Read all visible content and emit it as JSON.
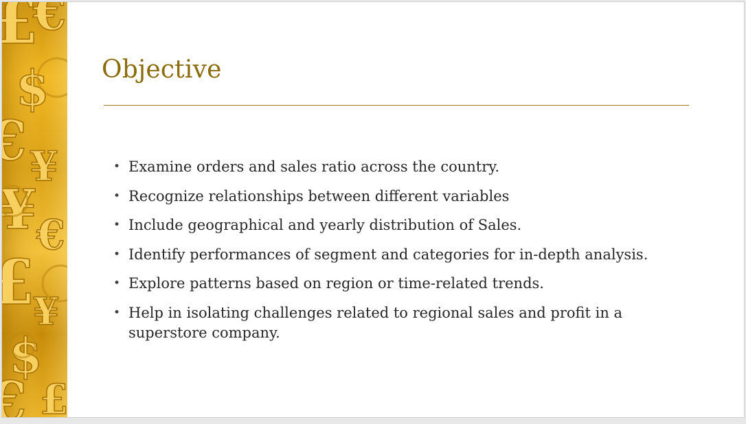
{
  "slide": {
    "title": "Objective",
    "bullet_symbol": "•",
    "bullets": [
      "Examine orders and sales ratio across the country.",
      "Recognize relationships between different variables",
      "Include geographical and yearly distribution of Sales.",
      "Identify performances of segment and categories for in-depth analysis.",
      "Explore patterns based on region or time-related trends.",
      "Help in isolating challenges related to regional sales and profit in a superstore company."
    ]
  },
  "colors": {
    "title": "#8c6c0a",
    "rule": "#9c7c1a",
    "text": "#262626",
    "gold_dark": "#b07a05",
    "gold_light": "#f6cc4c"
  },
  "side_panel": {
    "icon": "currency-symbols-gold-icon"
  }
}
